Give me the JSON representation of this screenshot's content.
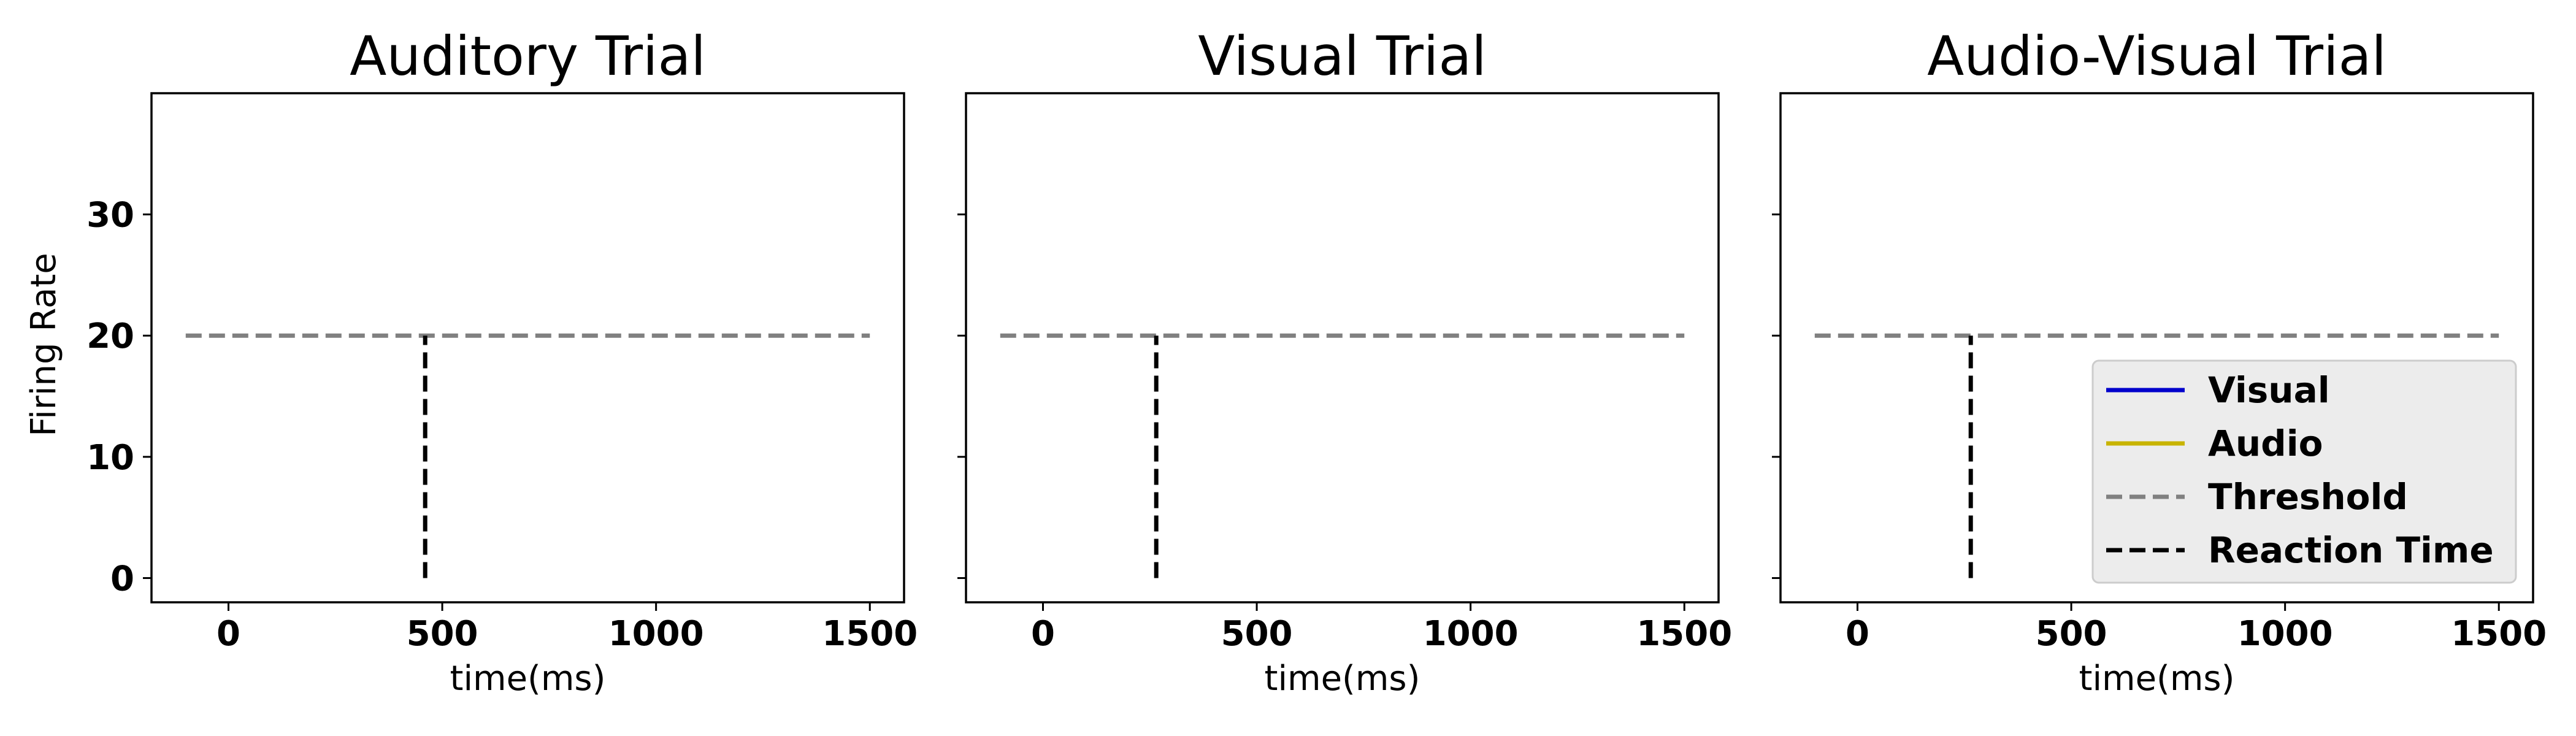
{
  "chart_data": [
    {
      "type": "line",
      "title": "Auditory Trial",
      "xlabel": "time(ms)",
      "ylabel": "Firing Rate",
      "xlim": [
        -180,
        1580
      ],
      "ylim": [
        -2,
        40
      ],
      "xticks": [
        0,
        500,
        1000,
        1500
      ],
      "yticks": [
        0,
        10,
        20,
        30
      ],
      "show_ytick_labels": true,
      "series": [
        {
          "name": "Visual",
          "color": "#0000cc",
          "style": "solid",
          "x": [],
          "y": []
        },
        {
          "name": "Audio",
          "color": "#c8b400",
          "style": "solid",
          "x": [],
          "y": []
        },
        {
          "name": "Threshold",
          "color": "#808080",
          "style": "dashed",
          "x": [
            -100,
            1500
          ],
          "y": [
            20,
            20
          ]
        },
        {
          "name": "Reaction Time",
          "color": "#000000",
          "style": "dashed",
          "x": [
            460,
            460
          ],
          "y": [
            0,
            20
          ]
        }
      ],
      "legend": false
    },
    {
      "type": "line",
      "title": "Visual Trial",
      "xlabel": "time(ms)",
      "ylabel": "",
      "xlim": [
        -180,
        1580
      ],
      "ylim": [
        -2,
        40
      ],
      "xticks": [
        0,
        500,
        1000,
        1500
      ],
      "yticks": [
        0,
        10,
        20,
        30
      ],
      "show_ytick_labels": false,
      "series": [
        {
          "name": "Visual",
          "color": "#0000cc",
          "style": "solid",
          "x": [],
          "y": []
        },
        {
          "name": "Audio",
          "color": "#c8b400",
          "style": "solid",
          "x": [],
          "y": []
        },
        {
          "name": "Threshold",
          "color": "#808080",
          "style": "dashed",
          "x": [
            -100,
            1500
          ],
          "y": [
            20,
            20
          ]
        },
        {
          "name": "Reaction Time",
          "color": "#000000",
          "style": "dashed",
          "x": [
            265,
            265
          ],
          "y": [
            0,
            20
          ]
        }
      ],
      "legend": false
    },
    {
      "type": "line",
      "title": "Audio-Visual Trial",
      "xlabel": "time(ms)",
      "ylabel": "",
      "xlim": [
        -180,
        1580
      ],
      "ylim": [
        -2,
        40
      ],
      "xticks": [
        0,
        500,
        1000,
        1500
      ],
      "yticks": [
        0,
        10,
        20,
        30
      ],
      "show_ytick_labels": false,
      "series": [
        {
          "name": "Visual",
          "color": "#0000cc",
          "style": "solid",
          "x": [],
          "y": []
        },
        {
          "name": "Audio",
          "color": "#c8b400",
          "style": "solid",
          "x": [],
          "y": []
        },
        {
          "name": "Threshold",
          "color": "#808080",
          "style": "dashed",
          "x": [
            -100,
            1500
          ],
          "y": [
            20,
            20
          ]
        },
        {
          "name": "Reaction Time",
          "color": "#000000",
          "style": "dashed",
          "x": [
            265,
            265
          ],
          "y": [
            0,
            20
          ]
        }
      ],
      "legend": true,
      "legend_position": "lower-right"
    }
  ]
}
